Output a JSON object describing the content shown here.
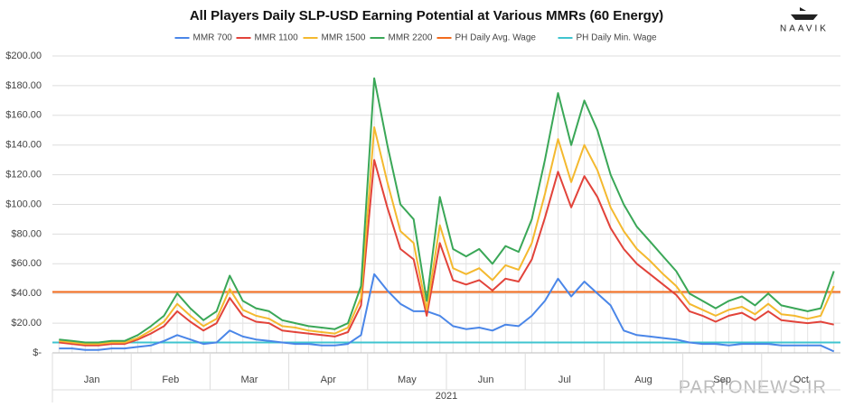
{
  "chart_data": {
    "type": "line",
    "title": "All Players Daily SLP-USD Earning Potential at Various MMRs (60 Energy)",
    "logo": "NAAVIK",
    "watermark": "PARTONEWS.IR",
    "x_group_label": "2021",
    "categories": [
      null,
      null,
      "Jan",
      null,
      null,
      null,
      null,
      null,
      "Feb",
      null,
      null,
      null,
      null,
      null,
      "Mar",
      null,
      null,
      null,
      null,
      null,
      "Apr",
      null,
      null,
      null,
      null,
      null,
      "May",
      null,
      null,
      null,
      null,
      null,
      "Jun",
      null,
      null,
      null,
      null,
      null,
      "Jul",
      null,
      null,
      null,
      null,
      null,
      "Aug",
      null,
      null,
      null,
      null,
      null,
      "Sep",
      null,
      null,
      null,
      null,
      null,
      "Oct",
      null,
      null,
      null
    ],
    "series": [
      {
        "name": "MMR 700",
        "color": "#4a86e8",
        "values": [
          3,
          3,
          2,
          2,
          3,
          3,
          4,
          5,
          8,
          12,
          9,
          6,
          7,
          15,
          11,
          9,
          8,
          7,
          6,
          6,
          5,
          5,
          6,
          12,
          53,
          42,
          33,
          28,
          28,
          25,
          18,
          16,
          17,
          15,
          19,
          18,
          25,
          35,
          50,
          38,
          48,
          40,
          32,
          15,
          12,
          11,
          10,
          9,
          7,
          6,
          6,
          5,
          6,
          6,
          6,
          5,
          5,
          5,
          5,
          1
        ]
      },
      {
        "name": "MMR 1100",
        "color": "#e2433a",
        "values": [
          7,
          6,
          5,
          5,
          6,
          6,
          9,
          13,
          18,
          28,
          21,
          15,
          20,
          37,
          25,
          21,
          20,
          15,
          14,
          13,
          12,
          11,
          14,
          32,
          130,
          98,
          70,
          63,
          25,
          74,
          49,
          46,
          49,
          42,
          50,
          48,
          63,
          91,
          122,
          98,
          119,
          105,
          84,
          70,
          60,
          53,
          46,
          39,
          28,
          25,
          21,
          25,
          27,
          22,
          28,
          22,
          21,
          20,
          21,
          19
        ]
      },
      {
        "name": "MMR 1500",
        "color": "#f4b92f",
        "values": [
          8,
          7,
          6,
          6,
          7,
          7,
          10,
          15,
          21,
          33,
          25,
          18,
          23,
          43,
          29,
          25,
          23,
          18,
          17,
          15,
          14,
          13,
          17,
          37,
          152,
          115,
          82,
          74,
          29,
          86,
          57,
          53,
          57,
          49,
          59,
          56,
          74,
          107,
          144,
          115,
          140,
          123,
          98,
          82,
          70,
          62,
          53,
          45,
          33,
          29,
          25,
          29,
          31,
          26,
          33,
          26,
          25,
          23,
          25,
          45
        ]
      },
      {
        "name": "MMR 2200",
        "color": "#3aa757",
        "values": [
          9,
          8,
          7,
          7,
          8,
          8,
          12,
          18,
          25,
          40,
          30,
          22,
          28,
          52,
          35,
          30,
          28,
          22,
          20,
          18,
          17,
          16,
          20,
          45,
          185,
          140,
          100,
          90,
          35,
          105,
          70,
          65,
          70,
          60,
          72,
          68,
          90,
          130,
          175,
          140,
          170,
          150,
          120,
          100,
          85,
          75,
          65,
          55,
          40,
          35,
          30,
          35,
          38,
          32,
          40,
          32,
          30,
          28,
          30,
          55
        ]
      }
    ],
    "reference_lines": [
      {
        "name": "PH Daily Avg. Wage",
        "color": "#f26b1d",
        "value": 41
      },
      {
        "name": "PH Daily Min. Wage",
        "color": "#3fc4cf",
        "value": 7
      }
    ],
    "ylim": [
      0,
      200
    ],
    "yticks": [
      {
        "value": 0,
        "label": "$-"
      },
      {
        "value": 20,
        "label": "$20.00"
      },
      {
        "value": 40,
        "label": "$40.00"
      },
      {
        "value": 60,
        "label": "$60.00"
      },
      {
        "value": 80,
        "label": "$80.00"
      },
      {
        "value": 100,
        "label": "$100.00"
      },
      {
        "value": 120,
        "label": "$120.00"
      },
      {
        "value": 140,
        "label": "$140.00"
      },
      {
        "value": 160,
        "label": "$160.00"
      },
      {
        "value": 180,
        "label": "$180.00"
      },
      {
        "value": 200,
        "label": "$200.00"
      }
    ],
    "grid": true
  }
}
